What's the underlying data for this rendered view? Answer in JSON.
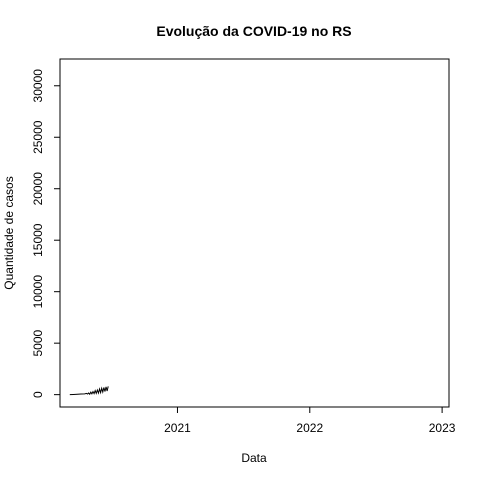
{
  "chart_data": {
    "type": "line",
    "title": "Evolução da COVID-19 no RS",
    "xlabel": "Data",
    "ylabel": "Quantidade de casos",
    "x_ticks": [
      "2021",
      "2022",
      "2023"
    ],
    "y_ticks": [
      "0",
      "5000",
      "10000",
      "15000",
      "20000",
      "25000",
      "30000"
    ],
    "xlim": [
      "2020-02-12",
      "2023-01-20"
    ],
    "ylim": [
      -1200,
      32600
    ],
    "grid": false,
    "legend": "none",
    "color": "#000000",
    "series": [
      {
        "x": [
          "2020-03-10",
          "2020-03-20",
          "2020-03-31",
          "2020-04-10",
          "2020-04-20",
          "2020-04-25",
          "2020-04-28",
          "2020-05-01",
          "2020-05-04",
          "2020-05-07",
          "2020-05-10",
          "2020-05-13",
          "2020-05-16",
          "2020-05-19",
          "2020-05-22",
          "2020-05-25",
          "2020-05-28",
          "2020-05-31",
          "2020-06-03",
          "2020-06-06",
          "2020-06-09",
          "2020-06-12",
          "2020-06-15",
          "2020-06-18",
          "2020-06-21",
          "2020-06-24"
        ],
        "y": [
          0,
          20,
          40,
          60,
          80,
          120,
          60,
          160,
          40,
          240,
          80,
          300,
          100,
          400,
          120,
          450,
          150,
          550,
          200,
          620,
          250,
          700,
          300,
          750,
          350,
          800
        ]
      }
    ]
  }
}
